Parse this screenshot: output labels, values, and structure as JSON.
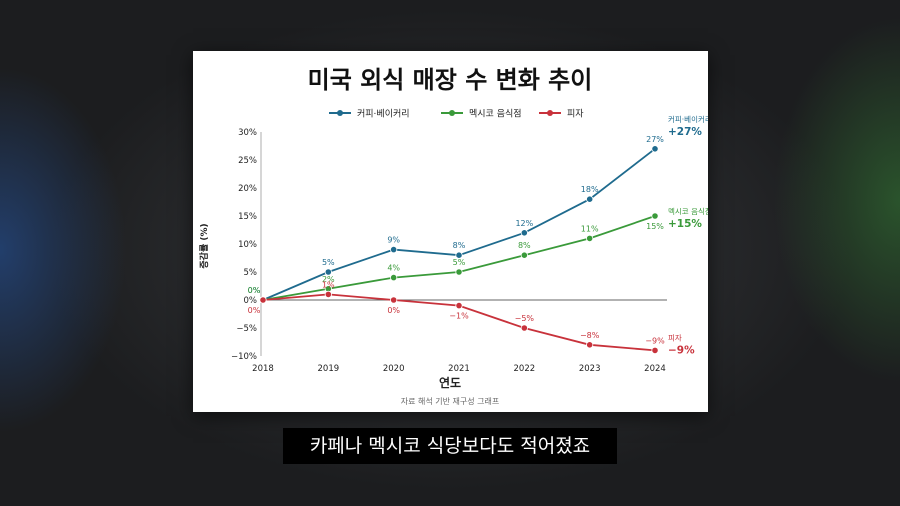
{
  "subtitle": "카페나 멕시코 식당보다도 적어졌죠",
  "chart_data": {
    "type": "line",
    "title": "미국 외식 매장 수 변화 추이",
    "xlabel": "연도",
    "ylabel": "증감률 (%)",
    "source_note": "자료 해석 기반 재구성 그래프",
    "x": [
      "2018",
      "2019",
      "2020",
      "2021",
      "2022",
      "2023",
      "2024"
    ],
    "ylim": [
      -10,
      30
    ],
    "yticks": [
      "30%",
      "25%",
      "20%",
      "15%",
      "10%",
      "5%",
      "0%",
      "−5%",
      "−10%"
    ],
    "legend_position": "top",
    "series": [
      {
        "name": "커피·베이커리",
        "color": "#1f6b8e",
        "values": [
          0,
          5,
          9,
          8,
          12,
          18,
          27
        ],
        "labels": [
          "0%",
          "5%",
          "9%",
          "8%",
          "12%",
          "18%",
          "27%"
        ],
        "end_name": "커피·베이커리",
        "end_value": "+27%"
      },
      {
        "name": "멕시코 음식점",
        "color": "#3a9a3a",
        "values": [
          0,
          2,
          4,
          5,
          8,
          11,
          15
        ],
        "labels": [
          "0%",
          "2%",
          "4%",
          "5%",
          "8%",
          "11%",
          "15%"
        ],
        "end_name": "멕시코 음식점",
        "end_value": "+15%"
      },
      {
        "name": "피자",
        "color": "#c8323b",
        "values": [
          0,
          1,
          0,
          -1,
          -5,
          -8,
          -9
        ],
        "labels": [
          "0%",
          "1%",
          "0%",
          "−1%",
          "−5%",
          "−8%",
          "−9%"
        ],
        "end_name": "피자",
        "end_value": "−9%"
      }
    ]
  }
}
